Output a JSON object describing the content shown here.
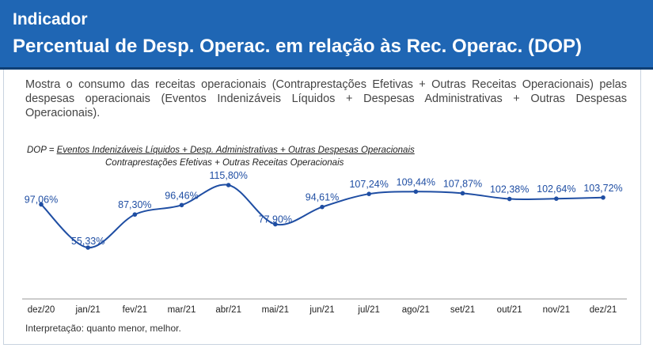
{
  "header": {
    "kicker": "Indicador",
    "title": "Percentual de Desp. Operac. em relação às Rec. Operac. (DOP)"
  },
  "description": "Mostra o consumo das receitas operacionais (Contraprestações Efetivas + Outras Receitas Operacionais) pelas despesas operacionais (Eventos Indenizáveis Líquidos + Despesas Administrativas + Outras Despesas Operacionais).",
  "formula": {
    "prefix": "DOP = ",
    "numerator": "Eventos Indenizáveis Líquidos + Desp. Administrativas + Outras Despesas Operacionais",
    "denominator": "Contraprestações Efetivas + Outras Receitas Operacionais"
  },
  "interpretation": "Interpretação: quanto menor, melhor.",
  "colors": {
    "header": "#1f66b4",
    "line": "#1f4ea3"
  },
  "chart_data": {
    "type": "line",
    "categories": [
      "dez/20",
      "jan/21",
      "fev/21",
      "mar/21",
      "abr/21",
      "mai/21",
      "jun/21",
      "jul/21",
      "ago/21",
      "set/21",
      "out/21",
      "nov/21",
      "dez/21"
    ],
    "series": [
      {
        "values": [
          97.06,
          55.33,
          87.3,
          96.46,
          115.8,
          77.9,
          94.61,
          107.24,
          109.44,
          107.87,
          102.38,
          102.64,
          103.72
        ],
        "labels": [
          "97,06%",
          "55,33%",
          "87,30%",
          "96,46%",
          "115,80%",
          "77,90%",
          "94,61%",
          "107,24%",
          "109,44%",
          "107,87%",
          "102,38%",
          "102,64%",
          "103,72%"
        ]
      }
    ],
    "grid": false,
    "legend": "none"
  }
}
